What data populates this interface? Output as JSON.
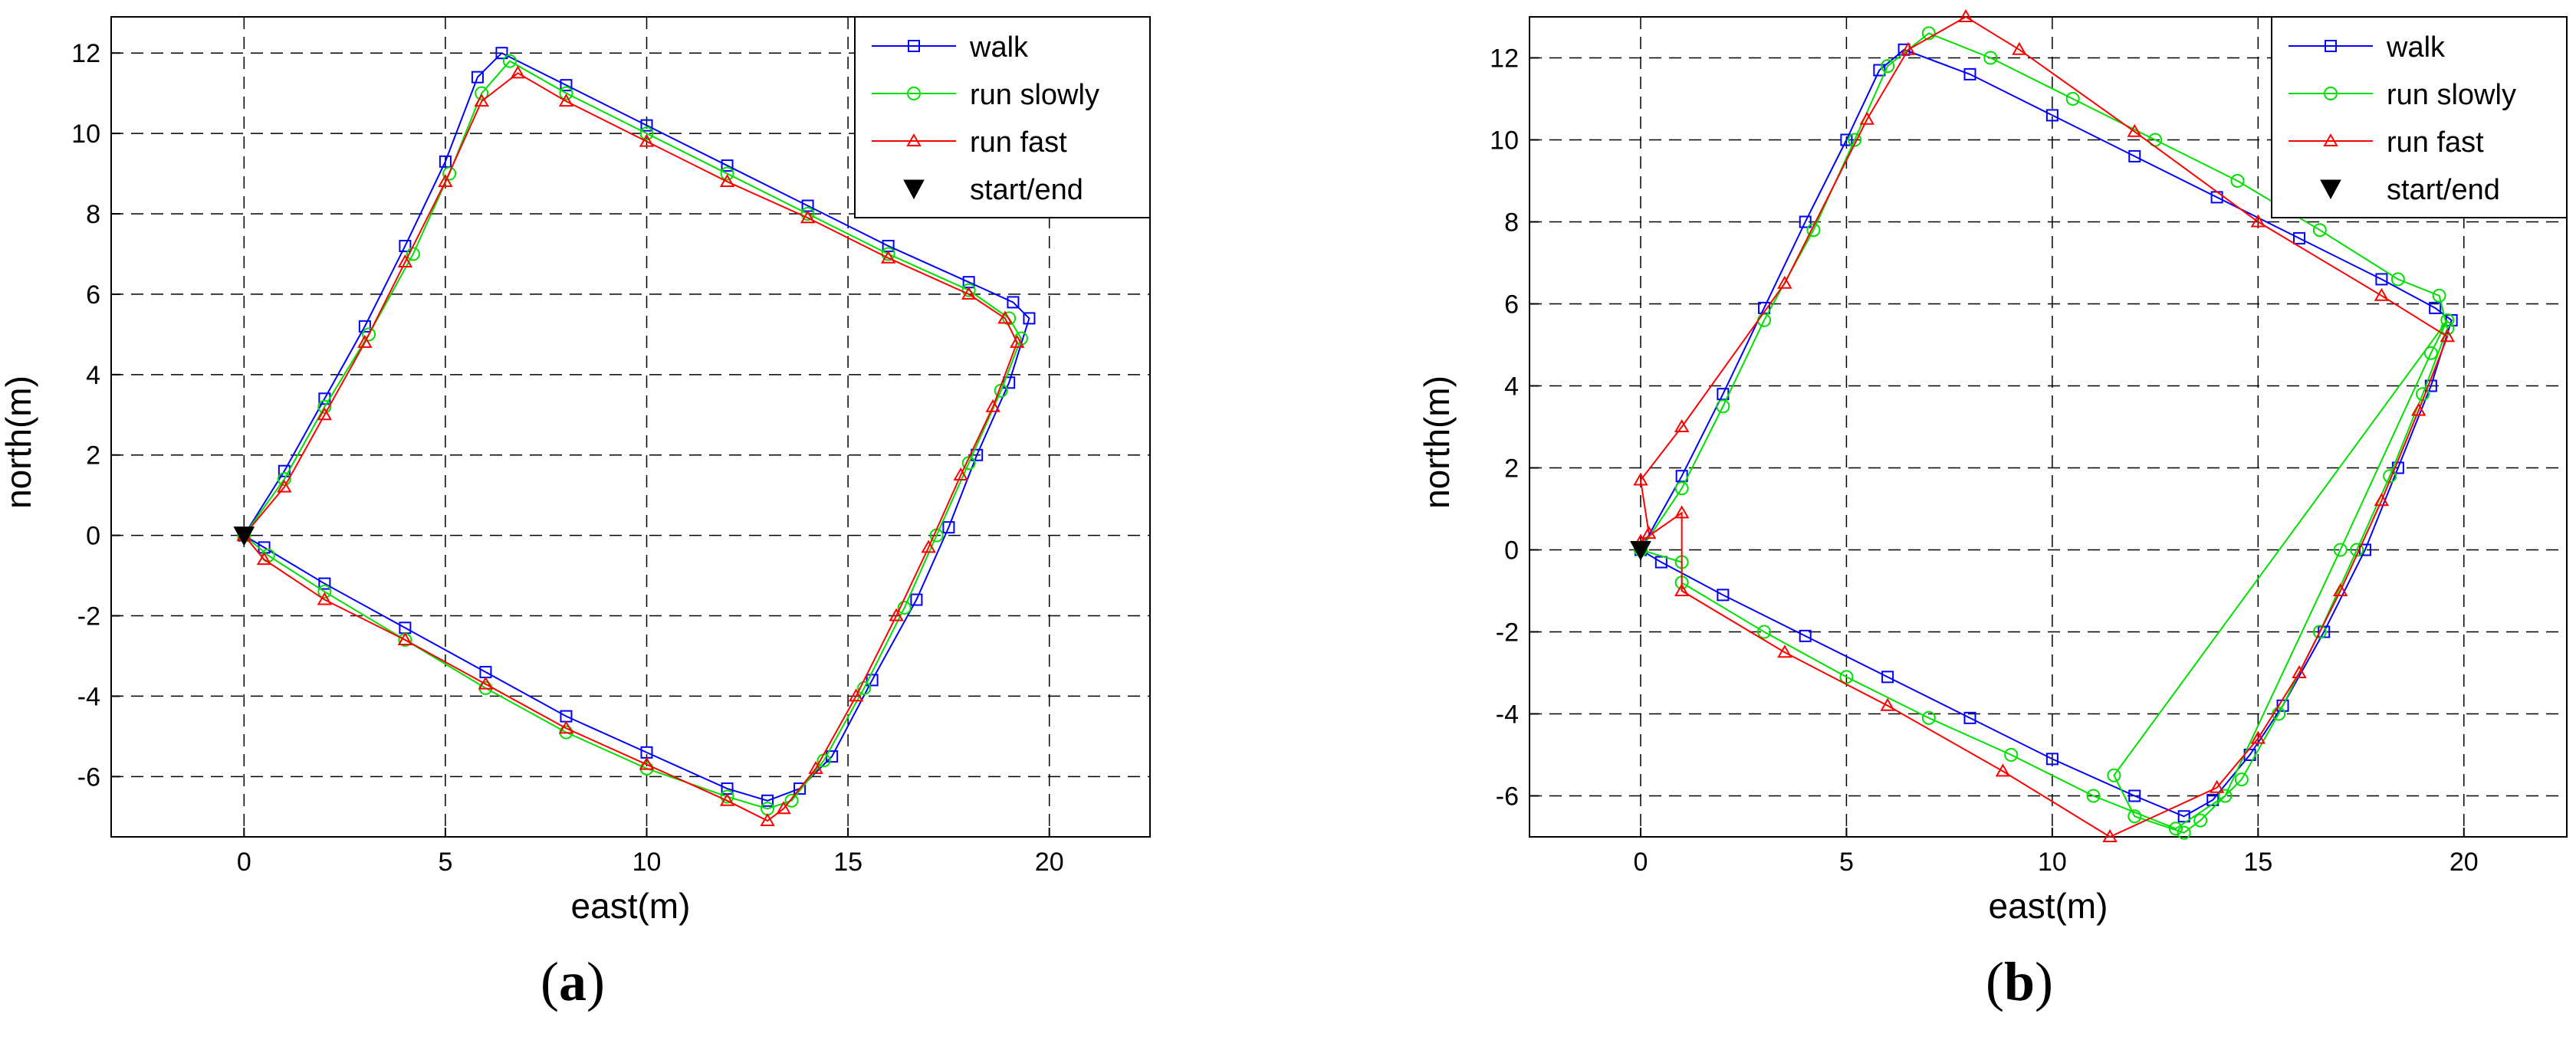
{
  "colors": {
    "walk": "#0000ff",
    "run_slowly": "#00e000",
    "run_fast": "#ff0000",
    "start_end": "#000000",
    "grid": "#000000",
    "axes": "#000000"
  },
  "captions": [
    {
      "open": "(",
      "letter": "a",
      "close": ")"
    },
    {
      "open": "(",
      "letter": "b",
      "close": ")"
    }
  ],
  "chart_data": [
    {
      "type": "line",
      "panel": "a",
      "xlabel": "east(m)",
      "ylabel": "north(m)",
      "xlim": [
        -3.3,
        22.5
      ],
      "ylim": [
        -7.5,
        12.9
      ],
      "xticks": [
        0,
        5,
        10,
        15,
        20
      ],
      "yticks": [
        -6,
        -4,
        -2,
        0,
        2,
        4,
        6,
        8,
        10,
        12
      ],
      "grid": true,
      "legend_position": "top-right",
      "series": [
        {
          "name": "walk",
          "color": "#0000ff",
          "marker": "square",
          "points": [
            [
              0,
              0
            ],
            [
              1.0,
              1.6
            ],
            [
              2.0,
              3.4
            ],
            [
              3.0,
              5.2
            ],
            [
              4.0,
              7.2
            ],
            [
              5.0,
              9.3
            ],
            [
              5.8,
              11.4
            ],
            [
              6.4,
              12.0
            ],
            [
              8.0,
              11.2
            ],
            [
              10.0,
              10.2
            ],
            [
              12.0,
              9.2
            ],
            [
              14.0,
              8.2
            ],
            [
              16.0,
              7.2
            ],
            [
              18.0,
              6.3
            ],
            [
              19.1,
              5.8
            ],
            [
              19.5,
              5.4
            ],
            [
              19.0,
              3.8
            ],
            [
              18.2,
              2.0
            ],
            [
              17.5,
              0.2
            ],
            [
              16.7,
              -1.6
            ],
            [
              15.6,
              -3.6
            ],
            [
              14.6,
              -5.5
            ],
            [
              13.8,
              -6.3
            ],
            [
              13.0,
              -6.6
            ],
            [
              12.0,
              -6.3
            ],
            [
              10.0,
              -5.4
            ],
            [
              8.0,
              -4.5
            ],
            [
              6.0,
              -3.4
            ],
            [
              4.0,
              -2.3
            ],
            [
              2.0,
              -1.2
            ],
            [
              0.5,
              -0.3
            ],
            [
              0,
              0
            ]
          ]
        },
        {
          "name": "run slowly",
          "color": "#00e000",
          "marker": "circle",
          "points": [
            [
              0,
              0
            ],
            [
              1.0,
              1.4
            ],
            [
              2.0,
              3.2
            ],
            [
              3.1,
              5.0
            ],
            [
              4.2,
              7.0
            ],
            [
              5.1,
              9.0
            ],
            [
              5.9,
              11.0
            ],
            [
              6.6,
              11.8
            ],
            [
              8.0,
              11.0
            ],
            [
              10.0,
              10.0
            ],
            [
              12.0,
              9.0
            ],
            [
              14.0,
              8.0
            ],
            [
              16.0,
              7.0
            ],
            [
              18.0,
              6.1
            ],
            [
              19.0,
              5.4
            ],
            [
              19.3,
              4.9
            ],
            [
              18.8,
              3.6
            ],
            [
              18.0,
              1.8
            ],
            [
              17.2,
              0.0
            ],
            [
              16.4,
              -1.8
            ],
            [
              15.4,
              -3.8
            ],
            [
              14.4,
              -5.6
            ],
            [
              13.6,
              -6.6
            ],
            [
              13.0,
              -6.8
            ],
            [
              12.0,
              -6.5
            ],
            [
              10.0,
              -5.8
            ],
            [
              8.0,
              -4.9
            ],
            [
              6.0,
              -3.8
            ],
            [
              4.0,
              -2.6
            ],
            [
              2.0,
              -1.4
            ],
            [
              0.6,
              -0.5
            ],
            [
              0,
              0
            ]
          ]
        },
        {
          "name": "run fast",
          "color": "#ff0000",
          "marker": "triangle",
          "points": [
            [
              0,
              0
            ],
            [
              1.0,
              1.2
            ],
            [
              2.0,
              3.0
            ],
            [
              3.0,
              4.8
            ],
            [
              4.0,
              6.8
            ],
            [
              5.0,
              8.8
            ],
            [
              5.9,
              10.8
            ],
            [
              6.8,
              11.5
            ],
            [
              8.0,
              10.8
            ],
            [
              10.0,
              9.8
            ],
            [
              12.0,
              8.8
            ],
            [
              14.0,
              7.9
            ],
            [
              16.0,
              6.9
            ],
            [
              18.0,
              6.0
            ],
            [
              18.9,
              5.4
            ],
            [
              19.2,
              4.8
            ],
            [
              18.6,
              3.2
            ],
            [
              17.8,
              1.5
            ],
            [
              17.0,
              -0.3
            ],
            [
              16.2,
              -2.0
            ],
            [
              15.2,
              -4.0
            ],
            [
              14.2,
              -5.8
            ],
            [
              13.4,
              -6.8
            ],
            [
              13.0,
              -7.1
            ],
            [
              12.0,
              -6.6
            ],
            [
              10.0,
              -5.7
            ],
            [
              8.0,
              -4.8
            ],
            [
              6.0,
              -3.7
            ],
            [
              4.0,
              -2.6
            ],
            [
              2.0,
              -1.6
            ],
            [
              0.5,
              -0.6
            ],
            [
              0,
              0
            ]
          ]
        },
        {
          "name": "start/end",
          "color": "#000000",
          "marker": "triangle-down",
          "points": [
            [
              0,
              0
            ]
          ]
        }
      ]
    },
    {
      "type": "line",
      "panel": "b",
      "xlabel": "east(m)",
      "ylabel": "north(m)",
      "xlim": [
        -2.7,
        22.5
      ],
      "ylim": [
        -7.0,
        13.0
      ],
      "xticks": [
        0,
        5,
        10,
        15,
        20
      ],
      "yticks": [
        -6,
        -4,
        -2,
        0,
        2,
        4,
        6,
        8,
        10,
        12
      ],
      "grid": true,
      "legend_position": "top-right",
      "series": [
        {
          "name": "walk",
          "color": "#0000ff",
          "marker": "square",
          "points": [
            [
              0,
              0
            ],
            [
              1.0,
              1.8
            ],
            [
              2.0,
              3.8
            ],
            [
              3.0,
              5.9
            ],
            [
              4.0,
              8.0
            ],
            [
              5.0,
              10.0
            ],
            [
              5.8,
              11.7
            ],
            [
              6.4,
              12.2
            ],
            [
              8.0,
              11.6
            ],
            [
              10.0,
              10.6
            ],
            [
              12.0,
              9.6
            ],
            [
              14.0,
              8.6
            ],
            [
              16.0,
              7.6
            ],
            [
              18.0,
              6.6
            ],
            [
              19.3,
              5.9
            ],
            [
              19.7,
              5.6
            ],
            [
              19.2,
              4.0
            ],
            [
              18.4,
              2.0
            ],
            [
              17.6,
              0.0
            ],
            [
              16.6,
              -2.0
            ],
            [
              15.6,
              -3.8
            ],
            [
              14.8,
              -5.0
            ],
            [
              13.9,
              -6.1
            ],
            [
              13.2,
              -6.5
            ],
            [
              12.0,
              -6.0
            ],
            [
              10.0,
              -5.1
            ],
            [
              8.0,
              -4.1
            ],
            [
              6.0,
              -3.1
            ],
            [
              4.0,
              -2.1
            ],
            [
              2.0,
              -1.1
            ],
            [
              0.5,
              -0.3
            ],
            [
              0,
              0
            ]
          ]
        },
        {
          "name": "run slowly",
          "color": "#00e000",
          "marker": "circle",
          "points": [
            [
              0,
              0
            ],
            [
              1.0,
              1.5
            ],
            [
              2.0,
              3.5
            ],
            [
              3.0,
              5.6
            ],
            [
              4.2,
              7.8
            ],
            [
              5.2,
              10.0
            ],
            [
              6.0,
              11.8
            ],
            [
              7.0,
              12.6
            ],
            [
              8.5,
              12.0
            ],
            [
              10.5,
              11.0
            ],
            [
              12.5,
              10.0
            ],
            [
              14.5,
              9.0
            ],
            [
              16.5,
              7.8
            ],
            [
              18.4,
              6.6
            ],
            [
              19.4,
              6.2
            ],
            [
              19.6,
              5.4
            ],
            [
              19.0,
              3.8
            ],
            [
              18.2,
              1.8
            ],
            [
              17.4,
              0.0
            ],
            [
              16.5,
              -2.0
            ],
            [
              15.5,
              -4.0
            ],
            [
              14.6,
              -5.6
            ],
            [
              13.6,
              -6.6
            ],
            [
              13.2,
              -6.9
            ],
            [
              12.0,
              -6.5
            ],
            [
              11.5,
              -5.5
            ],
            [
              19.6,
              5.6
            ],
            [
              19.2,
              4.8
            ],
            [
              17.0,
              0.0
            ],
            [
              14.2,
              -6.0
            ],
            [
              13.0,
              -6.8
            ],
            [
              11.0,
              -6.0
            ],
            [
              9.0,
              -5.0
            ],
            [
              7.0,
              -4.1
            ],
            [
              5.0,
              -3.1
            ],
            [
              3.0,
              -2.0
            ],
            [
              1.0,
              -0.8
            ],
            [
              1.0,
              -0.3
            ],
            [
              0,
              0
            ]
          ]
        },
        {
          "name": "run fast",
          "color": "#ff0000",
          "marker": "triangle",
          "points": [
            [
              0.2,
              0.4
            ],
            [
              0,
              1.7
            ],
            [
              1.0,
              3.0
            ],
            [
              3.5,
              6.5
            ],
            [
              5.5,
              10.5
            ],
            [
              6.5,
              12.2
            ],
            [
              7.9,
              13.0
            ],
            [
              9.2,
              12.2
            ],
            [
              12.0,
              10.2
            ],
            [
              15.0,
              8.0
            ],
            [
              18.0,
              6.2
            ],
            [
              19.6,
              5.2
            ],
            [
              18.9,
              3.4
            ],
            [
              18.0,
              1.2
            ],
            [
              17.0,
              -1.0
            ],
            [
              16.0,
              -3.0
            ],
            [
              15.0,
              -4.6
            ],
            [
              14.0,
              -5.8
            ],
            [
              11.4,
              -7.0
            ],
            [
              8.8,
              -5.4
            ],
            [
              6.0,
              -3.8
            ],
            [
              3.5,
              -2.5
            ],
            [
              1.0,
              -1.0
            ],
            [
              1.0,
              0.9
            ],
            [
              0,
              0.2
            ]
          ]
        },
        {
          "name": "start/end",
          "color": "#000000",
          "marker": "triangle-down",
          "points": [
            [
              0,
              0
            ]
          ]
        }
      ]
    }
  ]
}
